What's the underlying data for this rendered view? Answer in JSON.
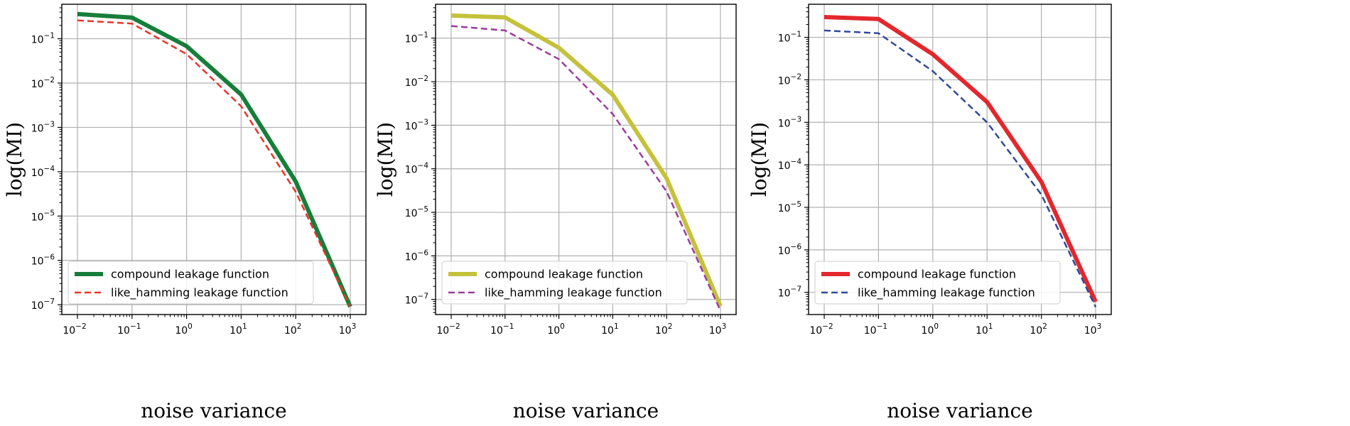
{
  "chart_data": [
    {
      "type": "line",
      "xlabel": "noise variance",
      "ylabel": "log(MI)",
      "xscale": "log",
      "yscale": "log",
      "xlim": [
        0.01,
        1000
      ],
      "ylim": [
        6e-08,
        0.6
      ],
      "x": [
        0.01,
        0.1,
        1,
        10,
        100,
        1000
      ],
      "xtick_values": [
        0.01,
        0.1,
        1,
        10,
        100,
        1000
      ],
      "xtick_labels": [
        [
          "10",
          "−2"
        ],
        [
          "10",
          "−1"
        ],
        [
          "10",
          "0"
        ],
        [
          "10",
          "1"
        ],
        [
          "10",
          "2"
        ],
        [
          "10",
          "3"
        ]
      ],
      "ytick_values": [
        1e-07,
        1e-06,
        1e-05,
        0.0001,
        0.001,
        0.01,
        0.1
      ],
      "ytick_labels": [
        [
          "10",
          "−7"
        ],
        [
          "10",
          "−6"
        ],
        [
          "10",
          "−5"
        ],
        [
          "10",
          "−4"
        ],
        [
          "10",
          "−3"
        ],
        [
          "10",
          "−2"
        ],
        [
          "10",
          "−1"
        ]
      ],
      "grid": true,
      "legend_position": "lower-left",
      "series": [
        {
          "name": "compound leakage function",
          "values": [
            0.36,
            0.3,
            0.068,
            0.0055,
            6e-05,
            9e-08
          ],
          "color": "#177e3a",
          "style": "solid"
        },
        {
          "name": "like_hamming leakage function",
          "values": [
            0.26,
            0.22,
            0.045,
            0.003,
            3.5e-05,
            9e-08
          ],
          "color": "#e8352a",
          "style": "dashed"
        }
      ]
    },
    {
      "type": "line",
      "xlabel": "noise variance",
      "ylabel": "log(MI)",
      "xscale": "log",
      "yscale": "log",
      "xlim": [
        0.01,
        1000
      ],
      "ylim": [
        4.5e-08,
        0.6
      ],
      "x": [
        0.01,
        0.1,
        1,
        10,
        100,
        1000
      ],
      "xtick_values": [
        0.01,
        0.1,
        1,
        10,
        100,
        1000
      ],
      "xtick_labels": [
        [
          "10",
          "−2"
        ],
        [
          "10",
          "−1"
        ],
        [
          "10",
          "0"
        ],
        [
          "10",
          "1"
        ],
        [
          "10",
          "2"
        ],
        [
          "10",
          "3"
        ]
      ],
      "ytick_values": [
        1e-07,
        1e-06,
        1e-05,
        0.0001,
        0.001,
        0.01,
        0.1
      ],
      "ytick_labels": [
        [
          "10",
          "−7"
        ],
        [
          "10",
          "−6"
        ],
        [
          "10",
          "−5"
        ],
        [
          "10",
          "−4"
        ],
        [
          "10",
          "−3"
        ],
        [
          "10",
          "−2"
        ],
        [
          "10",
          "−1"
        ]
      ],
      "grid": true,
      "legend_position": "lower-left",
      "series": [
        {
          "name": "compound leakage function",
          "values": [
            0.33,
            0.3,
            0.06,
            0.005,
            6e-05,
            7e-08
          ],
          "color": "#c4c23b",
          "style": "solid"
        },
        {
          "name": "like_hamming leakage function",
          "values": [
            0.19,
            0.15,
            0.033,
            0.0018,
            3e-05,
            5.5e-08
          ],
          "color": "#9b3b9d",
          "style": "dashed"
        }
      ]
    },
    {
      "type": "line",
      "xlabel": "noise variance",
      "ylabel": "log(MI)",
      "xscale": "log",
      "yscale": "log",
      "xlim": [
        0.01,
        1000
      ],
      "ylim": [
        3e-08,
        0.6
      ],
      "x": [
        0.01,
        0.1,
        1,
        10,
        100,
        1000
      ],
      "xtick_values": [
        0.01,
        0.1,
        1,
        10,
        100,
        1000
      ],
      "xtick_labels": [
        [
          "10",
          "−2"
        ],
        [
          "10",
          "−1"
        ],
        [
          "10",
          "0"
        ],
        [
          "10",
          "1"
        ],
        [
          "10",
          "2"
        ],
        [
          "10",
          "3"
        ]
      ],
      "ytick_values": [
        1e-07,
        1e-06,
        1e-05,
        0.0001,
        0.001,
        0.01,
        0.1
      ],
      "ytick_labels": [
        [
          "10",
          "−7"
        ],
        [
          "10",
          "−6"
        ],
        [
          "10",
          "−5"
        ],
        [
          "10",
          "−4"
        ],
        [
          "10",
          "−3"
        ],
        [
          "10",
          "−2"
        ],
        [
          "10",
          "−1"
        ]
      ],
      "grid": true,
      "legend_position": "lower-left",
      "series": [
        {
          "name": "compound leakage function",
          "values": [
            0.3,
            0.27,
            0.04,
            0.003,
            4e-05,
            6e-08
          ],
          "color": "#e3272c",
          "style": "solid"
        },
        {
          "name": "like_hamming leakage function",
          "values": [
            0.145,
            0.125,
            0.016,
            0.001,
            2e-05,
            4.5e-08
          ],
          "color": "#2f4a9a",
          "style": "dashed"
        }
      ]
    }
  ]
}
